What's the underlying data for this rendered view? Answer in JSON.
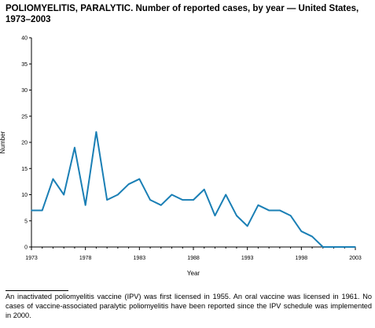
{
  "title": "POLIOMYELITIS, PARALYTIC. Number of reported cases, by year — United States, 1973–2003",
  "footnote": "An inactivated poliomyelitis vaccine (IPV) was first licensed in 1955. An oral vaccine was licensed in 1961. No cases of vaccine-associated paralytic poliomyelitis have been reported since the IPV schedule was implemented in 2000.",
  "chart_data": {
    "type": "line",
    "xlabel": "Year",
    "ylabel": "Number",
    "xlim": [
      1973,
      2003
    ],
    "ylim": [
      0,
      40
    ],
    "x_ticks": [
      1973,
      1978,
      1983,
      1988,
      1993,
      1998,
      2003
    ],
    "y_ticks": [
      0,
      5,
      10,
      15,
      20,
      25,
      30,
      35,
      40
    ],
    "grid": false,
    "line_color": "#1a7fb5",
    "x": [
      1973,
      1974,
      1975,
      1976,
      1977,
      1978,
      1979,
      1980,
      1981,
      1982,
      1983,
      1984,
      1985,
      1986,
      1987,
      1988,
      1989,
      1990,
      1991,
      1992,
      1993,
      1994,
      1995,
      1996,
      1997,
      1998,
      1999,
      2000,
      2001,
      2002,
      2003
    ],
    "values": [
      7,
      7,
      13,
      10,
      19,
      8,
      22,
      9,
      10,
      12,
      13,
      9,
      8,
      10,
      9,
      9,
      11,
      6,
      10,
      6,
      4,
      8,
      7,
      7,
      6,
      3,
      2,
      0,
      0,
      0,
      0
    ]
  }
}
